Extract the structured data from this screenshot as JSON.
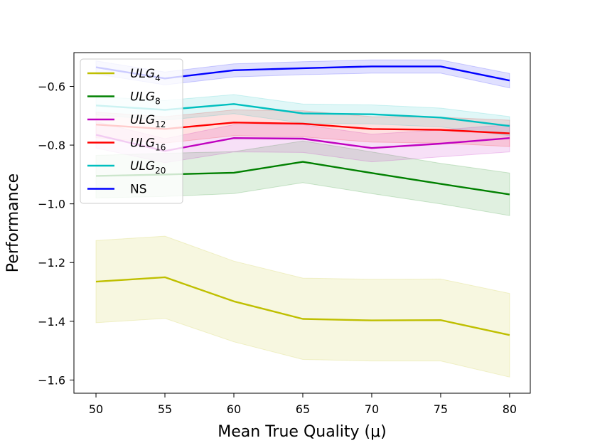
{
  "chart_data": {
    "type": "line",
    "title": "",
    "xlabel": "Mean True Quality (μ)",
    "ylabel": "Performance",
    "x": [
      50,
      55,
      60,
      65,
      70,
      75,
      80
    ],
    "x_ticks": [
      "50",
      "55",
      "60",
      "65",
      "70",
      "75",
      "80"
    ],
    "y_ticks": [
      {
        "value": -0.6,
        "label": "−0.6"
      },
      {
        "value": -0.8,
        "label": "−0.8"
      },
      {
        "value": -1.0,
        "label": "−1.0"
      },
      {
        "value": -1.2,
        "label": "−1.2"
      },
      {
        "value": -1.4,
        "label": "−1.4"
      },
      {
        "value": -1.6,
        "label": "−1.6"
      }
    ],
    "xlim": [
      48.4,
      81.5
    ],
    "ylim": [
      -1.645,
      -0.485
    ],
    "grid": false,
    "legend_position": "top-left",
    "series": [
      {
        "key": "ulg4",
        "name": "ULG",
        "sub": "4",
        "italic": true,
        "color": "#bfbf00",
        "values": [
          -1.265,
          -1.25,
          -1.332,
          -1.392,
          -1.397,
          -1.396,
          -1.447
        ],
        "lower": [
          -1.405,
          -1.39,
          -1.47,
          -1.53,
          -1.535,
          -1.535,
          -1.59
        ],
        "upper": [
          -1.125,
          -1.11,
          -1.195,
          -1.253,
          -1.257,
          -1.256,
          -1.305
        ]
      },
      {
        "key": "ulg8",
        "name": "ULG",
        "sub": "8",
        "italic": true,
        "color": "#008000",
        "values": [
          -0.905,
          -0.9,
          -0.894,
          -0.857,
          -0.895,
          -0.932,
          -0.968
        ],
        "lower": [
          -0.98,
          -0.975,
          -0.965,
          -0.928,
          -0.965,
          -1.0,
          -1.04
        ],
        "upper": [
          -0.835,
          -0.828,
          -0.822,
          -0.786,
          -0.823,
          -0.862,
          -0.895
        ]
      },
      {
        "key": "ulg12",
        "name": "ULG",
        "sub": "12",
        "italic": true,
        "color": "#bf00bf",
        "values": [
          -0.765,
          -0.82,
          -0.776,
          -0.778,
          -0.81,
          -0.795,
          -0.776
        ],
        "lower": [
          -0.81,
          -0.86,
          -0.823,
          -0.825,
          -0.857,
          -0.84,
          -0.823
        ],
        "upper": [
          -0.72,
          -0.778,
          -0.73,
          -0.73,
          -0.763,
          -0.748,
          -0.73
        ]
      },
      {
        "key": "ulg16",
        "name": "ULG",
        "sub": "16",
        "italic": true,
        "color": "#ff0000",
        "values": [
          -0.73,
          -0.745,
          -0.723,
          -0.727,
          -0.745,
          -0.748,
          -0.76
        ],
        "lower": [
          -0.775,
          -0.793,
          -0.768,
          -0.772,
          -0.79,
          -0.793,
          -0.805
        ],
        "upper": [
          -0.688,
          -0.703,
          -0.68,
          -0.683,
          -0.703,
          -0.705,
          -0.715
        ]
      },
      {
        "key": "ulg20",
        "name": "ULG",
        "sub": "20",
        "italic": true,
        "color": "#00bfbf",
        "values": [
          -0.665,
          -0.68,
          -0.66,
          -0.692,
          -0.695,
          -0.706,
          -0.735
        ],
        "lower": [
          -0.697,
          -0.715,
          -0.693,
          -0.725,
          -0.728,
          -0.738,
          -0.768
        ],
        "upper": [
          -0.635,
          -0.648,
          -0.628,
          -0.66,
          -0.663,
          -0.674,
          -0.703
        ]
      },
      {
        "key": "ns",
        "name": "NS",
        "sub": "",
        "italic": false,
        "color": "#0000ff",
        "values": [
          -0.535,
          -0.573,
          -0.545,
          -0.538,
          -0.532,
          -0.532,
          -0.58
        ],
        "lower": [
          -0.558,
          -0.595,
          -0.568,
          -0.56,
          -0.555,
          -0.555,
          -0.605
        ],
        "upper": [
          -0.513,
          -0.551,
          -0.523,
          -0.516,
          -0.51,
          -0.51,
          -0.556
        ]
      }
    ]
  }
}
